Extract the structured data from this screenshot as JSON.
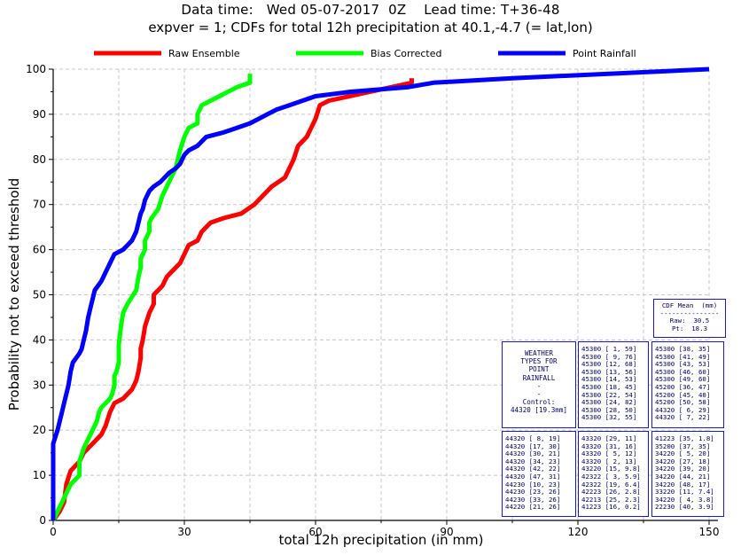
{
  "header": {
    "line1": "Data time:   Wed 05-07-2017  0Z    Lead time: T+36-48",
    "line2": "expver = 1; CDFs for total 12h precipitation at 40.1,-4.7 (= lat,lon)"
  },
  "chart_data": {
    "type": "line",
    "xlabel": "total 12h precipitation  (in mm)",
    "ylabel": "Probability not to exceed threshold",
    "xlim": [
      0,
      150
    ],
    "ylim": [
      0,
      100
    ],
    "xticks": [
      0,
      30,
      60,
      90,
      120,
      150
    ],
    "yticks": [
      0,
      10,
      20,
      30,
      40,
      50,
      60,
      70,
      80,
      90,
      100
    ],
    "grid": true,
    "legend_position": "top",
    "series": [
      {
        "name": "Raw Ensemble",
        "color": "#ff0000",
        "points": [
          [
            0,
            0
          ],
          [
            1.5,
            2
          ],
          [
            2.5,
            4
          ],
          [
            3,
            8
          ],
          [
            4,
            11
          ],
          [
            6,
            13
          ],
          [
            7,
            15
          ],
          [
            9,
            17
          ],
          [
            11,
            19
          ],
          [
            12,
            21
          ],
          [
            13,
            24
          ],
          [
            14,
            26
          ],
          [
            16,
            27
          ],
          [
            18,
            29
          ],
          [
            19,
            31
          ],
          [
            19.5,
            33
          ],
          [
            20,
            36
          ],
          [
            20,
            38
          ],
          [
            20.5,
            40
          ],
          [
            21,
            43
          ],
          [
            22,
            46
          ],
          [
            23,
            48
          ],
          [
            23,
            50
          ],
          [
            25,
            52
          ],
          [
            26,
            54
          ],
          [
            27,
            55
          ],
          [
            29,
            57
          ],
          [
            30,
            59
          ],
          [
            31,
            61
          ],
          [
            33,
            62
          ],
          [
            34,
            64
          ],
          [
            35,
            65
          ],
          [
            36,
            66
          ],
          [
            39,
            67
          ],
          [
            43,
            68
          ],
          [
            46,
            70
          ],
          [
            48,
            72
          ],
          [
            50,
            74
          ],
          [
            53,
            76
          ],
          [
            54,
            78
          ],
          [
            55,
            80
          ],
          [
            56,
            83
          ],
          [
            58,
            85
          ],
          [
            59,
            87
          ],
          [
            60,
            89
          ],
          [
            61,
            92
          ],
          [
            63,
            93
          ],
          [
            82,
            97
          ],
          [
            82,
            98
          ]
        ]
      },
      {
        "name": "Bias Corrected",
        "color": "#00ff00",
        "points": [
          [
            0,
            0
          ],
          [
            1,
            2
          ],
          [
            2,
            4
          ],
          [
            3,
            6
          ],
          [
            4,
            8
          ],
          [
            5,
            9
          ],
          [
            6,
            10
          ],
          [
            6,
            13
          ],
          [
            7,
            16
          ],
          [
            8,
            18
          ],
          [
            9,
            20
          ],
          [
            10,
            22
          ],
          [
            10.5,
            24
          ],
          [
            11,
            25
          ],
          [
            13,
            27
          ],
          [
            13.5,
            28
          ],
          [
            14,
            30
          ],
          [
            14,
            32
          ],
          [
            14.5,
            33
          ],
          [
            15,
            35
          ],
          [
            15,
            39
          ],
          [
            15.5,
            43
          ],
          [
            16,
            46
          ],
          [
            17,
            48
          ],
          [
            19,
            51
          ],
          [
            19.5,
            54
          ],
          [
            20,
            56
          ],
          [
            20,
            58
          ],
          [
            21,
            60
          ],
          [
            21,
            62
          ],
          [
            22,
            64
          ],
          [
            22,
            66
          ],
          [
            22.5,
            67
          ],
          [
            24,
            69
          ],
          [
            25,
            72
          ],
          [
            26,
            74
          ],
          [
            27,
            76
          ],
          [
            28,
            78
          ],
          [
            28.5,
            80
          ],
          [
            29,
            82
          ],
          [
            30,
            85
          ],
          [
            31,
            87
          ],
          [
            33,
            88
          ],
          [
            33,
            90
          ],
          [
            34,
            92
          ],
          [
            36,
            93
          ],
          [
            38,
            94
          ],
          [
            42,
            96
          ],
          [
            45,
            97
          ],
          [
            45,
            99
          ]
        ]
      },
      {
        "name": "Point Rainfall",
        "color": "#0000ff",
        "points": [
          [
            0,
            0
          ],
          [
            0,
            8
          ],
          [
            0,
            17
          ],
          [
            1,
            20
          ],
          [
            1.5,
            22
          ],
          [
            2,
            24
          ],
          [
            2.5,
            26
          ],
          [
            3,
            28
          ],
          [
            3.5,
            30
          ],
          [
            4,
            33
          ],
          [
            4.5,
            35
          ],
          [
            6,
            37
          ],
          [
            6.5,
            38
          ],
          [
            7,
            40
          ],
          [
            7.5,
            42
          ],
          [
            8,
            45
          ],
          [
            8.5,
            47
          ],
          [
            9,
            49
          ],
          [
            9.5,
            51
          ],
          [
            11,
            53
          ],
          [
            12,
            55
          ],
          [
            13,
            57
          ],
          [
            14,
            59
          ],
          [
            16,
            60
          ],
          [
            17,
            61
          ],
          [
            18,
            62
          ],
          [
            19,
            64
          ],
          [
            19.5,
            66
          ],
          [
            20,
            68
          ],
          [
            20.5,
            69
          ],
          [
            21,
            71
          ],
          [
            22,
            73
          ],
          [
            23,
            74
          ],
          [
            24.5,
            75
          ],
          [
            25.5,
            76
          ],
          [
            26.5,
            77
          ],
          [
            28,
            78
          ],
          [
            29,
            79
          ],
          [
            30,
            81
          ],
          [
            31,
            82
          ],
          [
            33,
            83
          ],
          [
            35,
            85
          ],
          [
            39,
            86
          ],
          [
            42,
            87
          ],
          [
            45,
            88
          ],
          [
            47,
            89
          ],
          [
            49,
            90
          ],
          [
            51,
            91
          ],
          [
            54,
            92
          ],
          [
            57,
            93
          ],
          [
            60,
            94
          ],
          [
            68,
            95
          ],
          [
            81,
            96
          ],
          [
            87,
            97
          ],
          [
            105,
            98
          ],
          [
            150,
            100
          ]
        ]
      }
    ]
  },
  "cdf_mean": {
    "title": "CDF Mean  (mm)",
    "divider": "---------------",
    "raw": "Raw:  30.5",
    "pt": "Pt:  18.3"
  },
  "weather_types": {
    "lines": [
      "WEATHER",
      "TYPES FOR",
      "POINT",
      "RAINFALL",
      "-",
      "-",
      "Control:",
      "44320 [19.3mm]"
    ]
  },
  "wt_tables": {
    "top_mid": [
      "45300 [ 1, 59]",
      "45300 [ 9, 76]",
      "45300 [12, 68]",
      "45300 [13, 56]",
      "45300 [14, 53]",
      "45300 [18, 45]",
      "45300 [22, 54]",
      "45300 [24, 82]",
      "45300 [28, 50]",
      "45300 [32, 55]"
    ],
    "top_right": [
      "45300 [38, 35]",
      "45300 [41, 49]",
      "45300 [43, 53]",
      "45300 [46, 60]",
      "45300 [49, 60]",
      "45200 [36, 47]",
      "45200 [45, 40]",
      "45200 [50, 58]",
      "44320 [ 6, 29]",
      "44320 [ 7, 22]"
    ],
    "bottom_left": [
      "44320 [ 8, 19]",
      "44320 [17, 30]",
      "44320 [30, 21]",
      "44320 [34, 23]",
      "44320 [42, 22]",
      "44320 [47, 31]",
      "44230 [10, 23]",
      "44230 [23, 26]",
      "44230 [33, 26]",
      "44220 [21, 26]"
    ],
    "bottom_mid": [
      "43320 [29, 11]",
      "43320 [31, 16]",
      "43320 [ 5, 12]",
      "43320 [ 2, 13]",
      "43220 [15, 9.8]",
      "42322 [ 3, 5.9]",
      "42322 [19, 6.4]",
      "42223 [26, 2.8]",
      "42213 [25, 2.3]",
      "41223 [16, 0.2]"
    ],
    "bottom_right": [
      "41223 [35, 1.8]",
      "35200 [37, 35]",
      "34220 [ 5, 20]",
      "34220 [27, 18]",
      "34220 [39, 20]",
      "34220 [44, 21]",
      "34220 [48, 17]",
      "33220 [11, 7.4]",
      "34220 [ 4, 3.8]",
      "22230 [40, 3.9]"
    ]
  }
}
